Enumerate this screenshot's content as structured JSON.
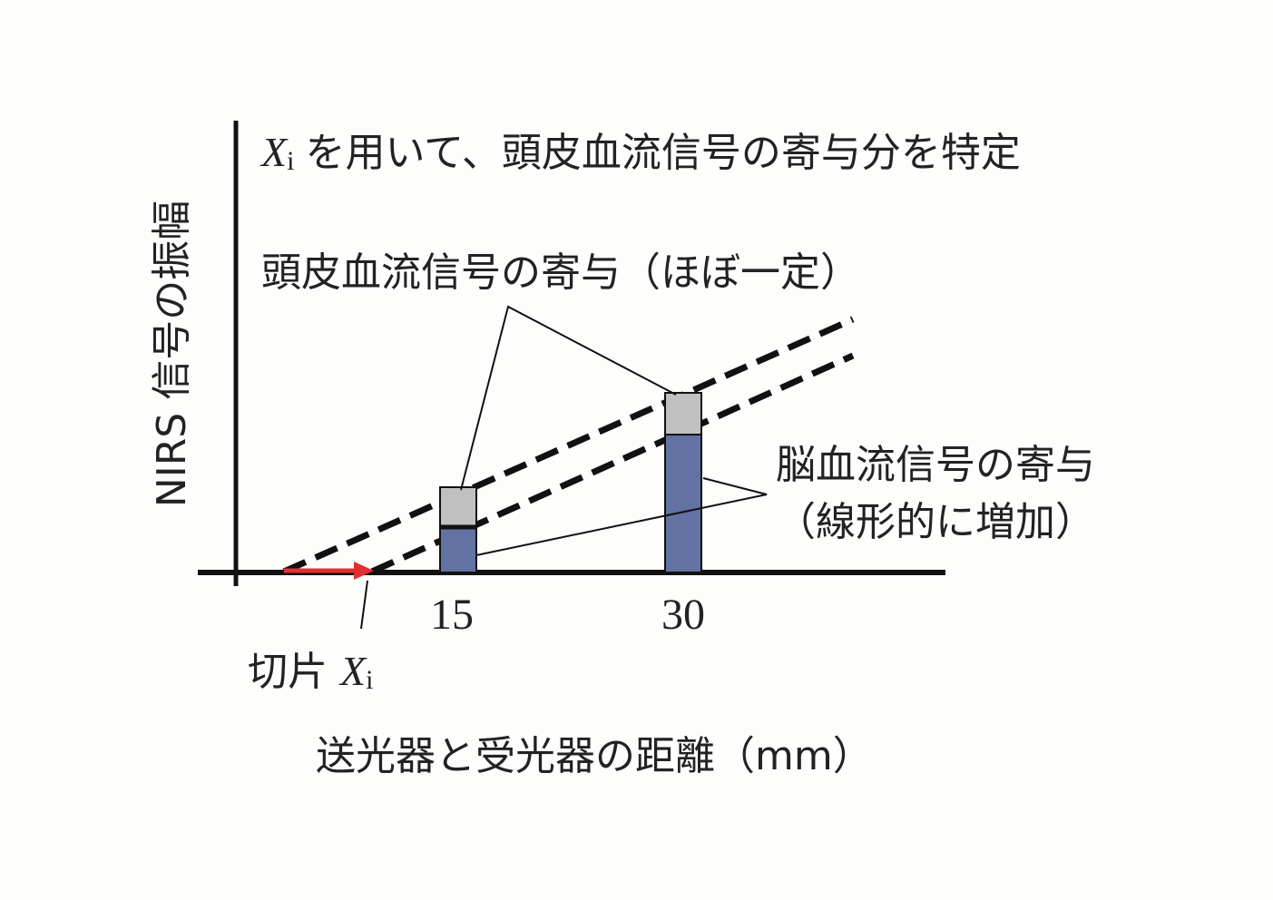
{
  "title": {
    "var": "X",
    "sub": "i",
    "text": "を用いて、頭皮血流信号の寄与分を特定"
  },
  "y_axis_label": "NIRS 信号の振幅",
  "x_axis_label": "送光器と受光器の距離（mm）",
  "x_ticks": [
    "15",
    "30"
  ],
  "scalp_note": "頭皮血流信号の寄与（ほぼ一定）",
  "brain_note": [
    "脳血流信号の寄与",
    "（線形的に増加）"
  ],
  "intercept_note": {
    "text": "切片",
    "var": "X",
    "sub": "i"
  }
}
